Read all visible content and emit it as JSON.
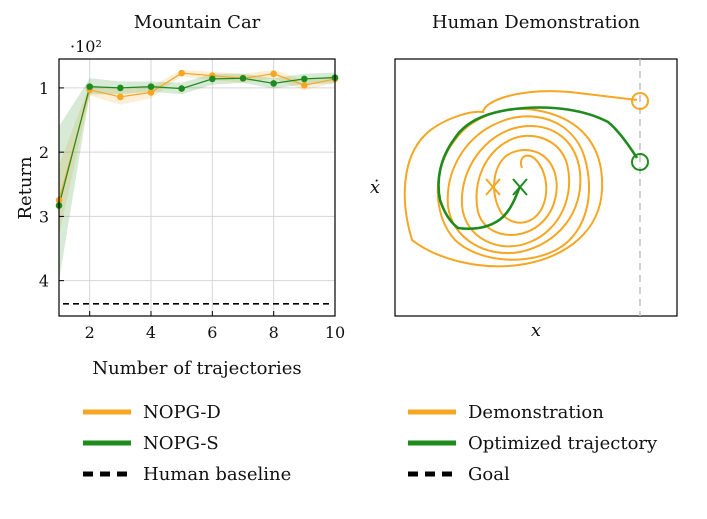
{
  "chart_data": [
    {
      "type": "line",
      "title": "Mountain Car",
      "xlabel": "Number of trajectories",
      "ylabel": "Return",
      "y_multiplier": "·10²",
      "y_inverted": true,
      "xlim": [
        1,
        10
      ],
      "ylim": [
        0.55,
        4.55
      ],
      "x_ticks": [
        "2",
        "4",
        "6",
        "8",
        "10"
      ],
      "y_ticks": [
        "1",
        "2",
        "3",
        "4"
      ],
      "grid": true,
      "x": [
        1,
        2,
        3,
        4,
        5,
        6,
        7,
        8,
        9,
        10
      ],
      "series": [
        {
          "name": "NOPG-D",
          "color": "#F5A623",
          "values": [
            2.75,
            1.03,
            1.14,
            1.07,
            0.77,
            0.81,
            0.85,
            0.78,
            0.96,
            0.86
          ],
          "band_low": [
            2.2,
            0.95,
            1.02,
            0.98,
            0.72,
            0.75,
            0.78,
            0.72,
            0.88,
            0.8
          ],
          "band_high": [
            3.3,
            1.12,
            1.26,
            1.16,
            0.82,
            0.88,
            0.92,
            0.85,
            1.04,
            0.92
          ]
        },
        {
          "name": "NOPG-S",
          "color": "#1E8B1E",
          "values": [
            2.83,
            0.98,
            1.0,
            0.98,
            1.01,
            0.86,
            0.85,
            0.93,
            0.86,
            0.84
          ],
          "band_low": [
            1.6,
            0.85,
            0.9,
            0.9,
            0.92,
            0.78,
            0.78,
            0.85,
            0.78,
            0.76
          ],
          "band_high": [
            4.0,
            1.1,
            1.1,
            1.06,
            1.1,
            0.95,
            0.92,
            1.01,
            0.94,
            0.93
          ]
        },
        {
          "name": "Human baseline",
          "color": "#000000",
          "style": "dashed",
          "values": [
            4.36,
            4.36,
            4.36,
            4.36,
            4.36,
            4.36,
            4.36,
            4.36,
            4.36,
            4.36
          ]
        }
      ]
    },
    {
      "type": "line",
      "title": "Human Demonstration",
      "xlabel": "x",
      "ylabel": "ẋ",
      "series": [
        {
          "name": "Demonstration",
          "color": "#F5A623"
        },
        {
          "name": "Optimized trajectory",
          "color": "#1E8B1E"
        },
        {
          "name": "Goal",
          "color": "#000000",
          "style": "dashed"
        }
      ]
    }
  ],
  "legend_left": [
    {
      "label": "NOPG-D",
      "color": "#F5A623",
      "style": "solid"
    },
    {
      "label": "NOPG-S",
      "color": "#1E8B1E",
      "style": "solid"
    },
    {
      "label": "Human baseline",
      "color": "#000000",
      "style": "dashed"
    }
  ],
  "legend_right": [
    {
      "label": "Demonstration",
      "color": "#F5A623",
      "style": "solid"
    },
    {
      "label": "Optimized trajectory",
      "color": "#1E8B1E",
      "style": "solid"
    },
    {
      "label": "Goal",
      "color": "#000000",
      "style": "dashed"
    }
  ]
}
